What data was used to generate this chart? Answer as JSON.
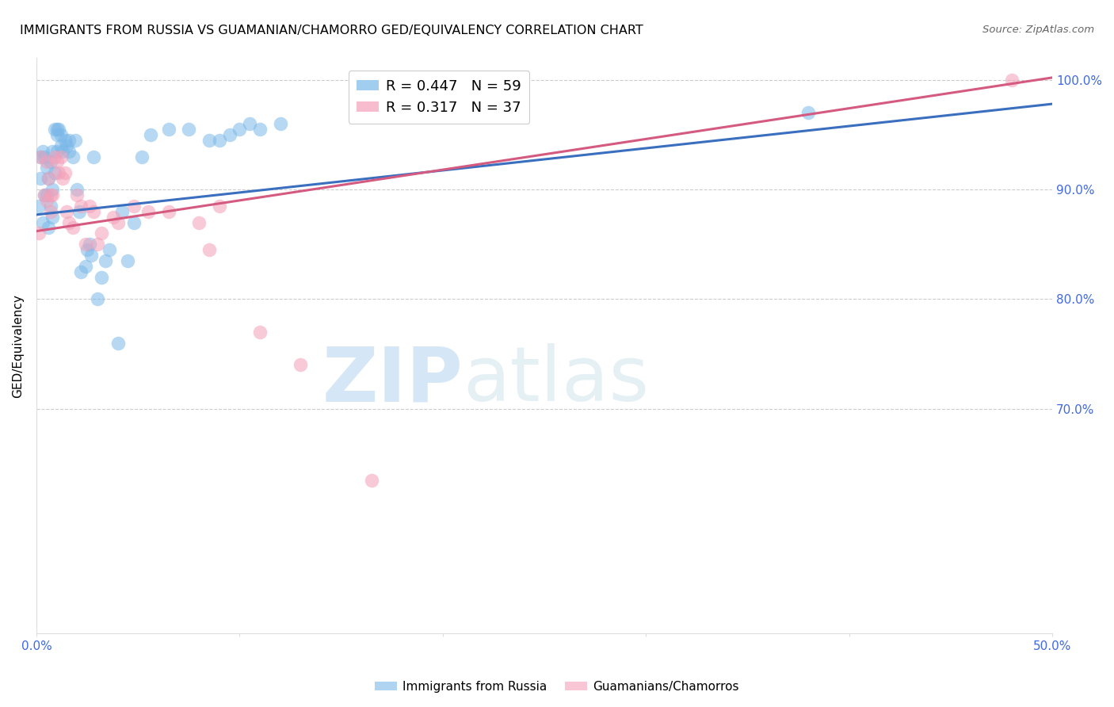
{
  "title": "IMMIGRANTS FROM RUSSIA VS GUAMANIAN/CHAMORRO GED/EQUIVALENCY CORRELATION CHART",
  "source": "Source: ZipAtlas.com",
  "ylabel": "GED/Equivalency",
  "ytick_labels": [
    "100.0%",
    "90.0%",
    "80.0%",
    "70.0%"
  ],
  "ytick_values": [
    1.0,
    0.9,
    0.8,
    0.7
  ],
  "xmin": 0.0,
  "xmax": 0.5,
  "ymin": 0.495,
  "ymax": 1.02,
  "blue_R": 0.447,
  "blue_N": 59,
  "pink_R": 0.317,
  "pink_N": 37,
  "blue_color": "#7ab8e8",
  "pink_color": "#f4a0b8",
  "blue_line_color": "#3a6fbf",
  "pink_line_color": "#d45a80",
  "legend_label_blue": "Immigrants from Russia",
  "legend_label_pink": "Guamanians/Chamorros",
  "watermark_zip": "ZIP",
  "watermark_atlas": "atlas",
  "blue_line_y0": 0.877,
  "blue_line_y1": 0.978,
  "pink_line_y0": 0.862,
  "pink_line_y1": 1.002,
  "blue_x": [
    0.001,
    0.002,
    0.002,
    0.003,
    0.003,
    0.004,
    0.004,
    0.005,
    0.005,
    0.006,
    0.006,
    0.007,
    0.007,
    0.008,
    0.008,
    0.008,
    0.009,
    0.009,
    0.01,
    0.01,
    0.01,
    0.011,
    0.012,
    0.012,
    0.013,
    0.014,
    0.015,
    0.016,
    0.016,
    0.018,
    0.019,
    0.02,
    0.021,
    0.022,
    0.024,
    0.025,
    0.026,
    0.027,
    0.028,
    0.03,
    0.032,
    0.034,
    0.036,
    0.04,
    0.042,
    0.045,
    0.048,
    0.052,
    0.056,
    0.065,
    0.075,
    0.085,
    0.09,
    0.095,
    0.1,
    0.105,
    0.11,
    0.12,
    0.38
  ],
  "blue_y": [
    0.885,
    0.91,
    0.93,
    0.87,
    0.935,
    0.895,
    0.93,
    0.895,
    0.92,
    0.865,
    0.91,
    0.885,
    0.925,
    0.935,
    0.9,
    0.875,
    0.955,
    0.915,
    0.935,
    0.95,
    0.955,
    0.955,
    0.94,
    0.95,
    0.935,
    0.945,
    0.94,
    0.935,
    0.945,
    0.93,
    0.945,
    0.9,
    0.88,
    0.825,
    0.83,
    0.845,
    0.85,
    0.84,
    0.93,
    0.8,
    0.82,
    0.835,
    0.845,
    0.76,
    0.88,
    0.835,
    0.87,
    0.93,
    0.95,
    0.955,
    0.955,
    0.945,
    0.945,
    0.95,
    0.955,
    0.96,
    0.955,
    0.96,
    0.97
  ],
  "pink_x": [
    0.001,
    0.002,
    0.004,
    0.005,
    0.005,
    0.006,
    0.007,
    0.007,
    0.008,
    0.009,
    0.01,
    0.011,
    0.012,
    0.013,
    0.014,
    0.015,
    0.016,
    0.018,
    0.02,
    0.022,
    0.024,
    0.026,
    0.028,
    0.03,
    0.032,
    0.038,
    0.04,
    0.048,
    0.055,
    0.065,
    0.08,
    0.085,
    0.09,
    0.11,
    0.13,
    0.165,
    0.48
  ],
  "pink_y": [
    0.86,
    0.93,
    0.895,
    0.89,
    0.925,
    0.91,
    0.88,
    0.895,
    0.895,
    0.93,
    0.925,
    0.915,
    0.93,
    0.91,
    0.915,
    0.88,
    0.87,
    0.865,
    0.895,
    0.885,
    0.85,
    0.885,
    0.88,
    0.85,
    0.86,
    0.875,
    0.87,
    0.885,
    0.88,
    0.88,
    0.87,
    0.845,
    0.885,
    0.77,
    0.74,
    0.635,
    1.0
  ],
  "title_fontsize": 11.5,
  "tick_color": "#4169e1",
  "source_color": "#666666"
}
